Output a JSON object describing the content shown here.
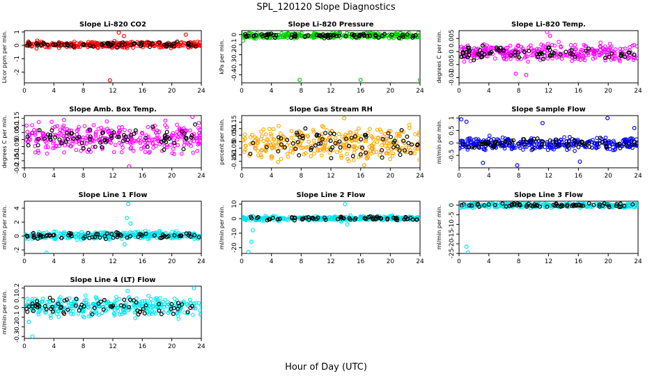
{
  "page_title": "SPL_120120  Slope Diagnostics",
  "x_axis_label": "Hour of Day (UTC)",
  "chart_data": [
    {
      "type": "scatter",
      "title": "Slope Li-820 CO2",
      "ylabel": "Licor ppm per min.",
      "color": "#ff0000",
      "xlim": [
        0,
        24
      ],
      "ylim": [
        -2.8,
        1.1
      ],
      "xticks": [
        0,
        4,
        8,
        12,
        16,
        20,
        24
      ],
      "yticks": [
        -2,
        -1,
        0,
        1
      ],
      "band": [
        -0.2,
        0.3
      ],
      "seed": 11,
      "outliers": [
        {
          "x": 11.6,
          "y": -2.6
        },
        {
          "x": 12.8,
          "y": 0.95
        },
        {
          "x": 13.5,
          "y": 0.7
        },
        {
          "x": 21.9,
          "y": 0.8
        }
      ]
    },
    {
      "type": "scatter",
      "title": "Slope Li-820 Pressure",
      "ylabel": "kPa per min.",
      "color": "#00cc00",
      "xlim": [
        0,
        24
      ],
      "ylim": [
        -0.48,
        0.04
      ],
      "xticks": [
        0,
        4,
        8,
        12,
        16,
        20,
        24
      ],
      "yticks": [
        0.0,
        -0.1,
        -0.2,
        -0.3,
        -0.4
      ],
      "band": [
        -0.04,
        0.02
      ],
      "seed": 23,
      "outliers": [
        {
          "x": 7.8,
          "y": -0.45
        },
        {
          "x": 16.0,
          "y": -0.45
        },
        {
          "x": 24.0,
          "y": -0.45
        },
        {
          "x": 0.2,
          "y": -0.06
        }
      ]
    },
    {
      "type": "scatter",
      "title": "Slope Li-820 Temp.",
      "ylabel": "degrees C per min.",
      "color": "#ff00ff",
      "xlim": [
        0,
        24
      ],
      "ylim": [
        -0.012,
        0.008
      ],
      "xticks": [
        0,
        4,
        8,
        12,
        16,
        20,
        24
      ],
      "yticks": [
        0.005,
        0.0,
        -0.005,
        -0.01
      ],
      "band": [
        -0.004,
        0.003
      ],
      "seed": 37,
      "outliers": [
        {
          "x": 11.8,
          "y": 0.0075
        },
        {
          "x": 12.2,
          "y": 0.006
        },
        {
          "x": 9.0,
          "y": -0.009
        },
        {
          "x": 7.6,
          "y": -0.0085
        }
      ]
    },
    {
      "type": "scatter",
      "title": "Slope Amb. Box Temp.",
      "ylabel": "degrees C per min.",
      "color": "#ff00ff",
      "xlim": [
        0,
        24
      ],
      "ylim": [
        -0.2,
        0.17
      ],
      "xticks": [
        0,
        4,
        8,
        12,
        16,
        20,
        24
      ],
      "yticks": [
        0.15,
        0.1,
        0.05,
        0.0,
        -0.05,
        -0.1,
        -0.15,
        -0.2
      ],
      "band": [
        -0.1,
        0.12
      ],
      "seed": 41,
      "outliers": [
        {
          "x": 14.2,
          "y": -0.19
        },
        {
          "x": 22.8,
          "y": 0.16
        }
      ]
    },
    {
      "type": "scatter",
      "title": "Slope Gas Stream RH",
      "ylabel": "percent per min.",
      "color": "#ffa500",
      "xlim": [
        0,
        24
      ],
      "ylim": [
        -0.2,
        0.2
      ],
      "xticks": [
        0,
        4,
        8,
        12,
        16,
        20,
        24
      ],
      "yticks": [
        0.15,
        0.1,
        0.05,
        0.0,
        -0.05,
        -0.1,
        -0.15
      ],
      "band": [
        -0.15,
        0.13
      ],
      "seed": 53,
      "outliers": [
        {
          "x": 13.8,
          "y": 0.18
        },
        {
          "x": 16.5,
          "y": -0.18
        }
      ]
    },
    {
      "type": "scatter",
      "title": "Slope Sample Flow",
      "ylabel": "ml/min per min.",
      "color": "#0000ff",
      "xlim": [
        0,
        24
      ],
      "ylim": [
        -1.0,
        1.1
      ],
      "xticks": [
        0,
        4,
        8,
        12,
        16,
        20,
        24
      ],
      "yticks": [
        1.0,
        0.5,
        0.0,
        -0.5
      ],
      "band": [
        -0.3,
        0.25
      ],
      "seed": 67,
      "outliers": [
        {
          "x": 0.3,
          "y": 0.95
        },
        {
          "x": 1.0,
          "y": 0.85
        },
        {
          "x": 19.9,
          "y": 1.0
        },
        {
          "x": 23.5,
          "y": 0.6
        },
        {
          "x": 3.2,
          "y": -0.8
        },
        {
          "x": 7.8,
          "y": -0.9
        },
        {
          "x": 11.2,
          "y": 0.8
        },
        {
          "x": 16.2,
          "y": -0.75
        }
      ]
    },
    {
      "type": "scatter",
      "title": "Slope Line 1 Flow",
      "ylabel": "ml/min per min.",
      "color": "#00e5ee",
      "xlim": [
        0,
        24
      ],
      "ylim": [
        -2.5,
        5.0
      ],
      "xticks": [
        0,
        4,
        8,
        12,
        16,
        20,
        24
      ],
      "yticks": [
        4,
        2,
        0,
        -2
      ],
      "band": [
        -0.5,
        0.7
      ],
      "seed": 71,
      "outliers": [
        {
          "x": 14.1,
          "y": 4.6
        },
        {
          "x": 13.9,
          "y": 2.6
        },
        {
          "x": 13.6,
          "y": -1.2
        },
        {
          "x": 14.4,
          "y": 1.8
        },
        {
          "x": 3.0,
          "y": -2.4
        }
      ]
    },
    {
      "type": "scatter",
      "title": "Slope Line 2 Flow",
      "ylabel": "ml/min per min.",
      "color": "#00e5ee",
      "xlim": [
        0,
        24
      ],
      "ylim": [
        -24,
        12
      ],
      "xticks": [
        0,
        4,
        8,
        12,
        16,
        20,
        24
      ],
      "yticks": [
        10,
        0,
        -10,
        -20
      ],
      "band": [
        -1.5,
        2
      ],
      "seed": 83,
      "outliers": [
        {
          "x": 0.9,
          "y": -23
        },
        {
          "x": 1.3,
          "y": -16
        },
        {
          "x": 1.5,
          "y": -8
        },
        {
          "x": 13.9,
          "y": 10
        },
        {
          "x": 14.2,
          "y": -4
        },
        {
          "x": 13.4,
          "y": -2
        }
      ]
    },
    {
      "type": "scatter",
      "title": "Slope Line 3 Flow",
      "ylabel": "ml/min per min.",
      "color": "#00e5ee",
      "xlim": [
        0,
        24
      ],
      "ylim": [
        -25,
        2
      ],
      "xticks": [
        0,
        4,
        8,
        12,
        16,
        20,
        24
      ],
      "yticks": [
        0,
        -5,
        -10,
        -15,
        -20,
        -25
      ],
      "band": [
        -1.5,
        1.2
      ],
      "seed": 97,
      "outliers": [
        {
          "x": 1.0,
          "y": -21.5
        },
        {
          "x": 1.2,
          "y": -24.5
        },
        {
          "x": 20.0,
          "y": 1.5
        },
        {
          "x": 0.6,
          "y": -1.0
        }
      ]
    },
    {
      "type": "scatter",
      "title": "Slope Line 4 (LT) Flow",
      "ylabel": "ml/min per min.",
      "color": "#00e5ee",
      "xlim": [
        0,
        24
      ],
      "ylim": [
        -0.32,
        0.22
      ],
      "xticks": [
        0,
        4,
        8,
        12,
        16,
        20,
        24
      ],
      "yticks": [
        0.2,
        0.1,
        0.0,
        -0.1,
        -0.2,
        -0.3
      ],
      "band": [
        -0.1,
        0.12
      ],
      "seed": 101,
      "outliers": [
        {
          "x": 1.1,
          "y": -0.3
        },
        {
          "x": 0.6,
          "y": -0.15
        },
        {
          "x": 23.0,
          "y": 0.2
        },
        {
          "x": 14.0,
          "y": 0.17
        }
      ]
    }
  ]
}
